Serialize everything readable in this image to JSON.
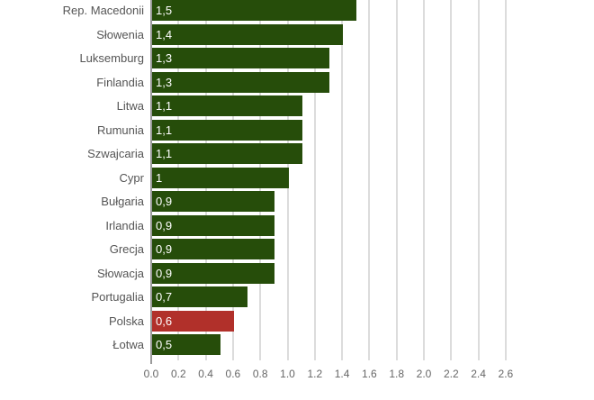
{
  "chart_data": {
    "type": "bar",
    "orientation": "horizontal",
    "title": "",
    "xlabel": "",
    "ylabel": "",
    "categories": [
      "Rep. Macedonii",
      "Słowenia",
      "Luksemburg",
      "Finlandia",
      "Litwa",
      "Rumunia",
      "Szwajcaria",
      "Cypr",
      "Bułgaria",
      "Irlandia",
      "Grecja",
      "Słowacja",
      "Portugalia",
      "Polska",
      "Łotwa"
    ],
    "values": [
      1.5,
      1.4,
      1.3,
      1.3,
      1.1,
      1.1,
      1.1,
      1.0,
      0.9,
      0.9,
      0.9,
      0.9,
      0.7,
      0.6,
      0.5
    ],
    "value_labels": [
      "1,5",
      "1,4",
      "1,3",
      "1,3",
      "1,1",
      "1,1",
      "1,1",
      "1",
      "0,9",
      "0,9",
      "0,9",
      "0,9",
      "0,7",
      "0,6",
      "0,5"
    ],
    "highlight": "Polska",
    "colors": {
      "default": "#264d0a",
      "highlight": "#b1302a"
    },
    "xlim": [
      0,
      2.6
    ],
    "xticks": [
      "0.0",
      "0.2",
      "0.4",
      "0.6",
      "0.8",
      "1.0",
      "1.2",
      "1.4",
      "1.6",
      "1.8",
      "2.0",
      "2.2",
      "2.4",
      "2.6"
    ],
    "grid": true,
    "legend": null
  }
}
